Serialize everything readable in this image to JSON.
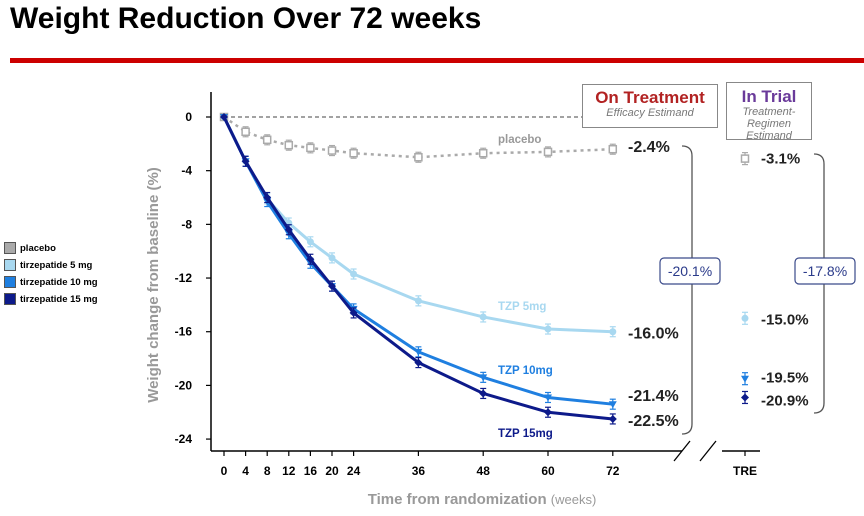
{
  "title": "Weight Reduction Over 72 weeks",
  "colors": {
    "title_rule": "#cc0000",
    "placebo": "#aaaaaa",
    "tzp5": "#a8d8f0",
    "tzp10": "#1f7fe0",
    "tzp15": "#0d1a8a"
  },
  "legend": [
    {
      "label": "placebo",
      "color": "#aaaaaa"
    },
    {
      "label": "tirzepatide 5 mg",
      "color": "#a8d8f0"
    },
    {
      "label": "tirzepatide 10 mg",
      "color": "#1f7fe0"
    },
    {
      "label": "tirzepatide 15 mg",
      "color": "#0d1a8a"
    }
  ],
  "on_treatment": {
    "title": "On Treatment",
    "subtitle": "Efficacy Estimand",
    "title_color": "#b22222"
  },
  "in_trial": {
    "title": "In Trial",
    "subtitle_line1": "Treatment-Regimen",
    "subtitle_line2": "Estimand",
    "title_color": "#6a3a9a"
  },
  "chart_data": {
    "type": "line",
    "title": "Weight Reduction Over 72 weeks",
    "xlabel": "Time from randomization",
    "xlabel_unit": "(weeks)",
    "ylabel": "Weight change from baseline (%)",
    "x": [
      0,
      4,
      8,
      12,
      16,
      20,
      24,
      36,
      48,
      60,
      72
    ],
    "x_ticks": [
      "0",
      "4",
      "8",
      "12",
      "16",
      "20",
      "24",
      "36",
      "48",
      "60",
      "72"
    ],
    "y_ticks": [
      "0",
      "-4",
      "-8",
      "-12",
      "-16",
      "-20",
      "-24"
    ],
    "ylim": [
      -25,
      1
    ],
    "series": [
      {
        "name": "placebo",
        "line_label": "placebo",
        "values": [
          0,
          -1.1,
          -1.7,
          -2.1,
          -2.3,
          -2.5,
          -2.7,
          -3.0,
          -2.7,
          -2.6,
          -2.4
        ],
        "end_label": "-2.4%",
        "tre": -3.1,
        "tre_label": "-3.1%"
      },
      {
        "name": "tirzepatide 5 mg",
        "line_label": "TZP 5mg",
        "values": [
          0,
          -3.3,
          -6.1,
          -7.9,
          -9.3,
          -10.5,
          -11.7,
          -13.7,
          -14.9,
          -15.8,
          -16.0
        ],
        "end_label": "-16.0%",
        "tre": -15.0,
        "tre_label": "-15.0%"
      },
      {
        "name": "tirzepatide 10 mg",
        "line_label": "TZP 10mg",
        "values": [
          0,
          -3.3,
          -6.3,
          -8.7,
          -10.9,
          -12.6,
          -14.3,
          -17.5,
          -19.4,
          -20.9,
          -21.4
        ],
        "end_label": "-21.4%",
        "tre": -19.5,
        "tre_label": "-19.5%"
      },
      {
        "name": "tirzepatide 15 mg",
        "line_label": "TZP 15mg",
        "values": [
          0,
          -3.3,
          -6.0,
          -8.4,
          -10.6,
          -12.6,
          -14.6,
          -18.3,
          -20.6,
          -22.0,
          -22.5
        ],
        "end_label": "-22.5%",
        "tre": -20.9,
        "tre_label": "-20.9%"
      }
    ],
    "differences": {
      "on_treatment": "-20.1%",
      "in_trial": "-17.8%"
    },
    "tre_label": "TRE",
    "grid": false,
    "legend_position": "left"
  }
}
